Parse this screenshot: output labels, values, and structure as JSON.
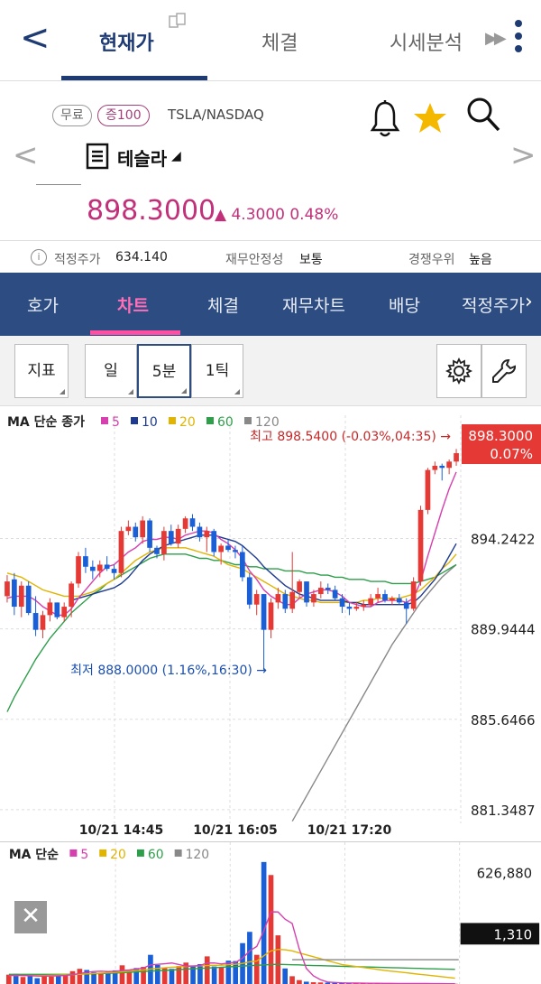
{
  "nav": {
    "back": "<",
    "tabs": [
      "현재가",
      "체결",
      "시세분석"
    ],
    "more": "▶▶"
  },
  "stock": {
    "tag_free": "무료",
    "tag_margin": "증100",
    "ticker": "TSLA/NASDAQ",
    "name": "테슬라",
    "caret": "◢",
    "price": "898.3000",
    "change": "▲ 4.3000  0.48%",
    "prev": "<",
    "next": ">"
  },
  "info": {
    "fair_label": "적정주가",
    "fair_value": "634.140",
    "stability_label": "재무안정성",
    "stability_value": "보통",
    "competition_label": "경쟁우위",
    "competition_value": "높음"
  },
  "subtabs": [
    "호가",
    "차트",
    "체결",
    "재무차트",
    "배당",
    "적정주가"
  ],
  "toolbar": {
    "indicator": "지표",
    "day": "일",
    "five_min": "5분",
    "tick": "1틱"
  },
  "colors": {
    "up": "#e53935",
    "down": "#1a5fd6",
    "ma5": "#d63fae",
    "ma10": "#1f3b8f",
    "ma20": "#e0b400",
    "ma60": "#2e9e4a",
    "ma120": "#888888",
    "nav_blue": "#2d4c82",
    "price_pink": "#c2307a"
  },
  "chart_data": [
    {
      "type": "candlestick",
      "title": "MA 단순 종가",
      "legend": [
        {
          "label": "5",
          "color": "#d63fae"
        },
        {
          "label": "10",
          "color": "#1f3b8f"
        },
        {
          "label": "20",
          "color": "#e0b400"
        },
        {
          "label": "60",
          "color": "#2e9e4a"
        },
        {
          "label": "120",
          "color": "#888888"
        }
      ],
      "y_ticks": [
        "894.2422",
        "889.9444",
        "885.6466",
        "881.3487"
      ],
      "y_tick_values": [
        894.2422,
        889.9444,
        885.6466,
        881.3487
      ],
      "ylim": [
        880.7,
        898.9
      ],
      "x_labels": [
        "10/21 14:45",
        "10/21 16:05",
        "10/21 17:20"
      ],
      "x_label_index": [
        16,
        32,
        48
      ],
      "last_price_label": "898.3000",
      "last_pct_label": "0.07%",
      "high_annotation": "최고 898.5400 (-0.03%,04:35) →",
      "low_annotation": "최저 888.0000 (1.16%,16:30) →",
      "candles": [
        [
          891.5,
          892.5,
          891.2,
          892.2
        ],
        [
          892.3,
          892.6,
          890.6,
          891.0
        ],
        [
          891.0,
          892.2,
          890.5,
          892.0
        ],
        [
          892.0,
          892.2,
          890.6,
          890.7
        ],
        [
          890.7,
          891.5,
          889.6,
          889.9
        ],
        [
          889.9,
          890.8,
          889.5,
          890.6
        ],
        [
          890.6,
          891.4,
          890.3,
          891.2
        ],
        [
          891.2,
          891.2,
          890.4,
          890.5
        ],
        [
          890.5,
          891.2,
          890.3,
          891.0
        ],
        [
          891.0,
          892.2,
          890.5,
          892.1
        ],
        [
          892.1,
          893.6,
          891.9,
          893.4
        ],
        [
          893.4,
          893.8,
          892.6,
          892.9
        ],
        [
          892.9,
          893.2,
          892.3,
          892.7
        ],
        [
          892.7,
          893.2,
          892.4,
          893.0
        ],
        [
          893.0,
          893.4,
          892.7,
          892.8
        ],
        [
          892.8,
          893.0,
          892.3,
          892.6
        ],
        [
          892.6,
          894.8,
          892.4,
          894.6
        ],
        [
          894.6,
          895.1,
          894.4,
          894.8
        ],
        [
          894.8,
          895.0,
          894.1,
          894.3
        ],
        [
          894.3,
          895.3,
          894.0,
          895.1
        ],
        [
          895.1,
          895.2,
          893.6,
          893.8
        ],
        [
          893.8,
          893.9,
          893.3,
          893.5
        ],
        [
          893.5,
          894.8,
          893.2,
          894.6
        ],
        [
          894.6,
          894.9,
          893.9,
          894.0
        ],
        [
          894.0,
          894.9,
          893.8,
          894.7
        ],
        [
          894.7,
          895.3,
          894.5,
          895.2
        ],
        [
          895.2,
          895.4,
          894.6,
          894.8
        ],
        [
          894.8,
          895.0,
          894.1,
          894.3
        ],
        [
          894.3,
          894.8,
          893.6,
          894.6
        ],
        [
          894.6,
          894.7,
          893.4,
          893.6
        ],
        [
          893.6,
          894.0,
          893.0,
          893.9
        ],
        [
          893.9,
          894.2,
          893.6,
          893.7
        ],
        [
          893.7,
          893.9,
          893.3,
          893.6
        ],
        [
          893.6,
          893.9,
          892.2,
          892.4
        ],
        [
          892.4,
          892.6,
          890.9,
          891.1
        ],
        [
          891.1,
          891.8,
          890.6,
          891.6
        ],
        [
          891.6,
          891.6,
          888.0,
          889.9
        ],
        [
          889.9,
          891.4,
          889.5,
          891.2
        ],
        [
          891.2,
          891.9,
          890.9,
          891.6
        ],
        [
          891.6,
          891.8,
          890.7,
          890.9
        ],
        [
          890.9,
          893.6,
          890.7,
          891.7
        ],
        [
          891.7,
          892.3,
          891.4,
          892.2
        ],
        [
          892.2,
          892.2,
          891.0,
          891.2
        ],
        [
          891.2,
          891.8,
          891.0,
          891.6
        ],
        [
          891.6,
          892.2,
          891.4,
          891.9
        ],
        [
          891.9,
          892.1,
          891.6,
          891.8
        ],
        [
          891.8,
          892.0,
          891.3,
          891.4
        ],
        [
          891.4,
          891.6,
          890.7,
          891.0
        ],
        [
          891.0,
          891.2,
          890.6,
          890.9
        ],
        [
          890.9,
          891.2,
          890.8,
          891.0
        ],
        [
          891.0,
          891.3,
          890.8,
          891.1
        ],
        [
          891.1,
          891.6,
          891.0,
          891.4
        ],
        [
          891.4,
          891.9,
          891.2,
          891.6
        ],
        [
          891.6,
          891.8,
          891.2,
          891.3
        ],
        [
          891.3,
          891.5,
          891.1,
          891.4
        ],
        [
          891.4,
          891.6,
          891.1,
          891.2
        ],
        [
          891.2,
          891.4,
          890.2,
          890.9
        ],
        [
          890.9,
          892.4,
          890.8,
          892.2
        ],
        [
          892.2,
          895.8,
          892.0,
          895.6
        ],
        [
          895.6,
          897.6,
          895.4,
          897.5
        ],
        [
          897.5,
          897.9,
          897.3,
          897.7
        ],
        [
          897.7,
          897.8,
          897.0,
          897.6
        ],
        [
          897.6,
          898.0,
          897.3,
          897.9
        ],
        [
          897.9,
          898.5,
          897.7,
          898.3
        ]
      ],
      "ma5": [
        891.4,
        891.5,
        891.5,
        891.5,
        891.3,
        891.0,
        890.8,
        890.6,
        890.6,
        890.9,
        891.4,
        891.8,
        892.2,
        892.6,
        892.9,
        893.0,
        893.3,
        893.6,
        893.8,
        894.1,
        894.2,
        894.2,
        894.3,
        894.3,
        894.2,
        894.4,
        894.5,
        894.6,
        894.6,
        894.5,
        894.2,
        894.0,
        893.7,
        893.3,
        892.7,
        892.3,
        891.8,
        891.5,
        891.3,
        891.1,
        891.1,
        891.4,
        891.6,
        891.7,
        891.8,
        891.8,
        891.7,
        891.5,
        891.2,
        891.1,
        891.0,
        891.0,
        891.2,
        891.3,
        891.3,
        891.3,
        891.2,
        891.4,
        892.2,
        893.4,
        894.5,
        895.6,
        896.6,
        897.4
      ],
      "ma10": [
        null,
        null,
        null,
        null,
        null,
        null,
        null,
        null,
        null,
        891.3,
        891.4,
        891.5,
        891.6,
        891.7,
        891.8,
        891.9,
        892.1,
        892.4,
        892.8,
        893.2,
        893.5,
        893.7,
        893.9,
        894.0,
        894.1,
        894.2,
        894.3,
        894.4,
        894.4,
        894.4,
        894.3,
        894.2,
        894.1,
        893.9,
        893.6,
        893.3,
        892.9,
        892.6,
        892.3,
        892.0,
        891.8,
        891.6,
        891.5,
        891.4,
        891.3,
        891.3,
        891.3,
        891.3,
        891.2,
        891.2,
        891.1,
        891.1,
        891.1,
        891.1,
        891.1,
        891.1,
        891.1,
        891.2,
        891.5,
        891.9,
        892.3,
        892.8,
        893.4,
        894.0
      ],
      "ma20": [
        892.6,
        892.5,
        892.4,
        892.2,
        892.0,
        891.8,
        891.7,
        891.6,
        891.5,
        891.5,
        891.5,
        891.6,
        891.7,
        891.9,
        892.1,
        892.3,
        892.6,
        892.9,
        893.2,
        893.4,
        893.6,
        893.7,
        893.8,
        893.8,
        893.8,
        893.8,
        893.7,
        893.6,
        893.5,
        893.4,
        893.2,
        893.0,
        892.9,
        892.8,
        892.6,
        892.4,
        892.2,
        892.0,
        891.8,
        891.6,
        891.5,
        891.4,
        891.3,
        891.3,
        891.2,
        891.2,
        891.2,
        891.2,
        891.2,
        891.2,
        891.3,
        891.3,
        891.4,
        891.4,
        891.4,
        891.4,
        891.5,
        891.6,
        891.8,
        892.1,
        892.4,
        892.8,
        893.1,
        893.5
      ],
      "ma60": [
        886.0,
        886.7,
        887.3,
        887.9,
        888.5,
        889.0,
        889.5,
        889.9,
        890.3,
        890.7,
        891.0,
        891.3,
        891.6,
        891.8,
        892.1,
        892.3,
        892.5,
        892.7,
        892.9,
        893.1,
        893.3,
        893.4,
        893.5,
        893.5,
        893.5,
        893.5,
        893.4,
        893.3,
        893.3,
        893.2,
        893.2,
        893.1,
        893.0,
        893.0,
        892.9,
        892.9,
        892.8,
        892.8,
        892.8,
        892.7,
        892.7,
        892.7,
        892.6,
        892.6,
        892.5,
        892.5,
        892.4,
        892.4,
        892.3,
        892.3,
        892.3,
        892.2,
        892.2,
        892.2,
        892.1,
        892.1,
        892.1,
        892.1,
        892.2,
        892.3,
        892.4,
        892.6,
        892.8,
        893.0
      ],
      "ma120": [
        null,
        null,
        null,
        null,
        null,
        null,
        null,
        null,
        null,
        null,
        null,
        null,
        null,
        null,
        null,
        null,
        null,
        null,
        null,
        null,
        null,
        null,
        null,
        null,
        null,
        null,
        null,
        null,
        null,
        null,
        null,
        null,
        null,
        null,
        null,
        null,
        null,
        null,
        null,
        null,
        880.8,
        881.4,
        882.0,
        882.6,
        883.2,
        883.8,
        884.4,
        885.0,
        885.6,
        886.2,
        886.8,
        887.4,
        888.0,
        888.6,
        889.2,
        889.7,
        890.2,
        890.7,
        891.2,
        891.6,
        892.0,
        892.4,
        892.7,
        893.0
      ]
    },
    {
      "type": "bar",
      "title": "MA 단순",
      "legend": [
        {
          "label": "5",
          "color": "#d63fae"
        },
        {
          "label": "20",
          "color": "#e0b400"
        },
        {
          "label": "60",
          "color": "#2e9e4a"
        },
        {
          "label": "120",
          "color": "#888888"
        }
      ],
      "y_max_label": "626,880",
      "ylim": [
        0,
        626880
      ],
      "current_label": "1,310",
      "volumes": [
        48000,
        52000,
        36000,
        40000,
        30000,
        44000,
        38000,
        50000,
        42000,
        66000,
        78000,
        72000,
        60000,
        56000,
        62000,
        70000,
        96000,
        74000,
        82000,
        88000,
        150000,
        98000,
        84000,
        78000,
        92000,
        110000,
        94000,
        102000,
        142000,
        90000,
        86000,
        120000,
        118000,
        210000,
        268000,
        150000,
        626880,
        560000,
        250000,
        80000,
        40000,
        20000,
        12000,
        9000,
        8000,
        7000,
        6000,
        5000,
        4500,
        4000,
        3800,
        3600,
        3400,
        3200,
        3000,
        2800,
        2600,
        2400,
        2200,
        2000,
        1800,
        1600,
        1400,
        1310
      ],
      "ma5": [
        44000,
        45000,
        44000,
        43000,
        41000,
        40000,
        41000,
        42000,
        44000,
        48000,
        54000,
        60000,
        64000,
        66000,
        64000,
        65000,
        69000,
        72000,
        77000,
        82000,
        98000,
        101000,
        104000,
        108000,
        100000,
        92000,
        92000,
        95000,
        108000,
        108000,
        103000,
        108000,
        111000,
        133000,
        170000,
        193000,
        274000,
        371000,
        370000,
        333000,
        311000,
        180000,
        80000,
        42000,
        22000,
        10000,
        8000,
        6000,
        5000,
        4500,
        4000,
        3800,
        3500,
        3300,
        3100,
        2900,
        2700,
        2500,
        2300,
        2100,
        1900,
        1700,
        1500,
        1400
      ],
      "ma20": [
        44000,
        44000,
        44000,
        44000,
        44000,
        44000,
        45000,
        46000,
        47000,
        48000,
        50000,
        52000,
        54000,
        56000,
        58000,
        60000,
        63000,
        66000,
        69000,
        72000,
        77000,
        80000,
        83000,
        86000,
        88000,
        90000,
        92000,
        93000,
        95000,
        96000,
        97000,
        99000,
        101000,
        106000,
        114000,
        118000,
        145000,
        170000,
        178000,
        176000,
        170000,
        160000,
        150000,
        140000,
        130000,
        120000,
        110000,
        100000,
        95000,
        90000,
        85000,
        80000,
        75000,
        70000,
        66000,
        62000,
        58000,
        54000,
        50000,
        46000,
        42000,
        38000,
        34000,
        30000
      ],
      "ma60": [
        50000,
        50000,
        50000,
        50000,
        50000,
        50000,
        50000,
        50000,
        50000,
        50000,
        51000,
        52000,
        53000,
        54000,
        55000,
        56000,
        58000,
        60000,
        62000,
        64000,
        66000,
        68000,
        70000,
        72000,
        74000,
        76000,
        78000,
        80000,
        82000,
        84000,
        86000,
        88000,
        90000,
        92000,
        94000,
        96000,
        98000,
        100000,
        101000,
        100000,
        99000,
        98000,
        96000,
        95000,
        94000,
        93000,
        92000,
        91000,
        90000,
        89000,
        88000,
        87000,
        86000,
        85000,
        84000,
        83000,
        82000,
        81000,
        80000,
        79000,
        78000,
        77000,
        76000,
        75000
      ],
      "ma120": [
        null,
        null,
        null,
        null,
        null,
        null,
        null,
        null,
        null,
        null,
        null,
        null,
        null,
        null,
        null,
        null,
        null,
        null,
        null,
        null,
        null,
        null,
        null,
        null,
        null,
        null,
        null,
        null,
        null,
        null,
        null,
        null,
        null,
        null,
        null,
        null,
        null,
        null,
        null,
        null,
        null,
        null,
        null,
        null,
        null,
        null,
        null,
        null,
        null,
        null,
        null,
        null,
        null,
        null,
        null,
        null,
        null,
        null,
        null,
        null,
        null,
        null,
        null,
        null
      ],
      "ma120_flat": 125000,
      "ma120_start_index": 40
    }
  ]
}
